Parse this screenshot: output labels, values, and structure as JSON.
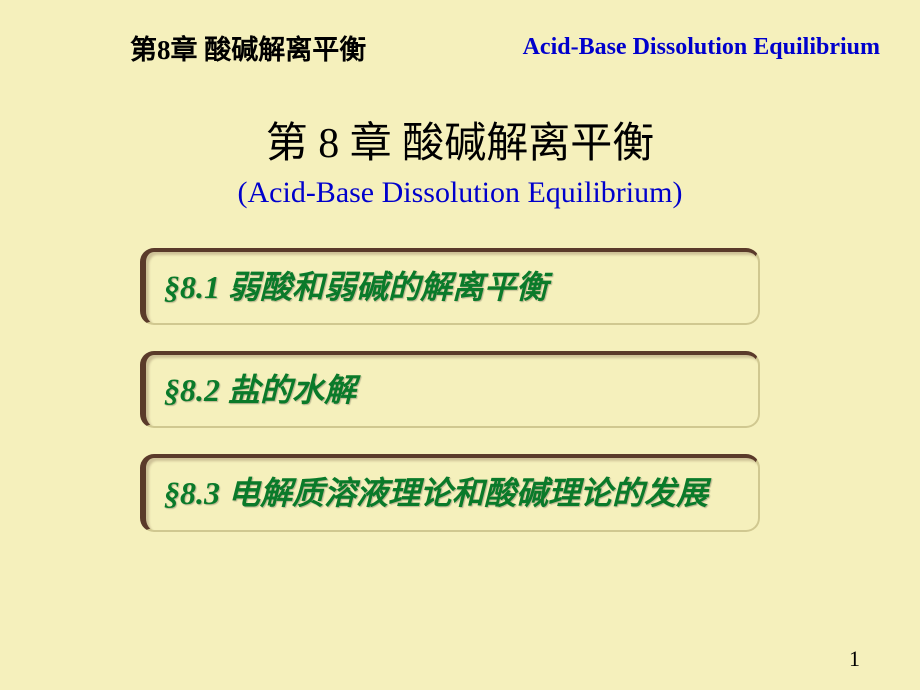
{
  "header": {
    "left": "第8章  酸碱解离平衡",
    "right": "Acid-Base Dissolution Equilibrium"
  },
  "title": {
    "cn": "第 8 章 酸碱解离平衡",
    "en": "(Acid-Base Dissolution  Equilibrium)"
  },
  "sections": {
    "s1": {
      "num": "§8.1",
      "text": "  弱酸和弱碱的解离平衡"
    },
    "s2": {
      "num": "§8.2",
      "text": "  盐的水解"
    },
    "s3": {
      "num": "§8.3",
      "text": "  电解质溶液理论和酸碱理论的发展"
    }
  },
  "page_number": "1",
  "colors": {
    "background": "#f5f0bc",
    "header_blue": "#0000cc",
    "section_green": "#0a7a2a",
    "border_dark": "#5a3a2a"
  }
}
